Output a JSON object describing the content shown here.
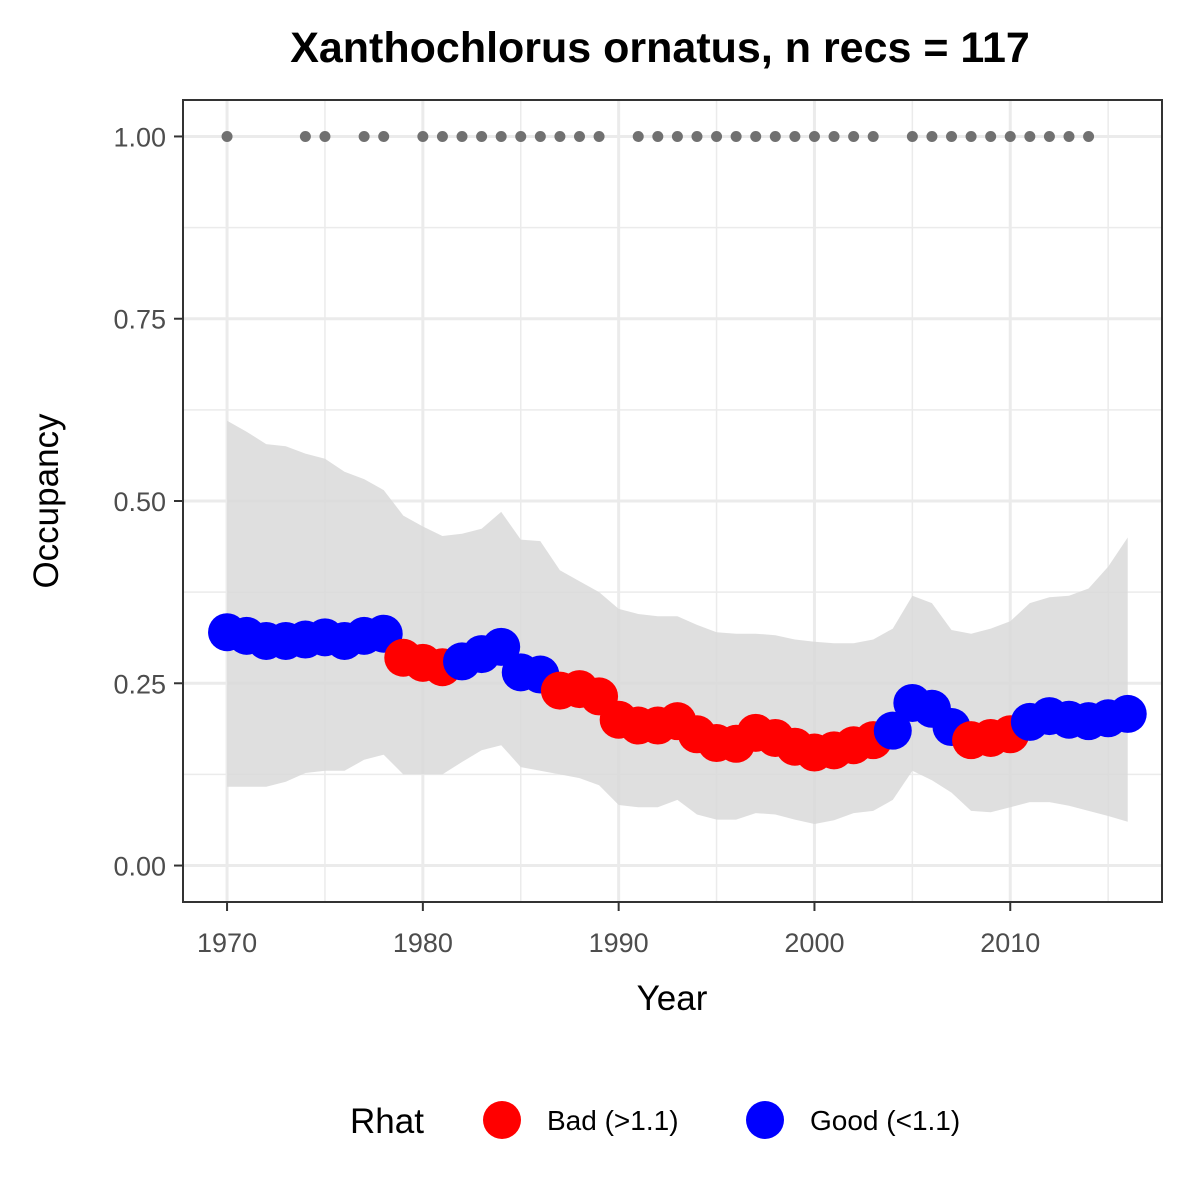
{
  "chart_data": {
    "type": "line",
    "title": "Xanthochlorus ornatus, n recs = 117",
    "xlabel": "Year",
    "ylabel": "Occupancy",
    "xlim": [
      1967.75,
      2017.75
    ],
    "ylim": [
      -0.05,
      1.05
    ],
    "x_ticks": [
      1970,
      1980,
      1990,
      2000,
      2010
    ],
    "x_tick_labels": [
      "1970",
      "1980",
      "1990",
      "2000",
      "2010"
    ],
    "y_ticks": [
      0,
      0.25,
      0.5,
      0.75,
      1
    ],
    "y_tick_labels": [
      "0.00",
      "0.25",
      "0.50",
      "0.75",
      "1.00"
    ],
    "grid": true,
    "legend_position": "bottom",
    "legend": {
      "title": "Rhat",
      "entries": [
        {
          "key": "bad",
          "label": "Bad (>1.1)",
          "color": "#ff0000"
        },
        {
          "key": "good",
          "label": "Good (<1.1)",
          "color": "#0000ff"
        }
      ]
    },
    "colors": {
      "bad": "#ff0000",
      "good": "#0000ff",
      "ribbon": "#d9d9d9",
      "record_dots": "#707070",
      "panel_border": "#333333",
      "grid": "#ebebeb"
    },
    "years": [
      1970,
      1971,
      1972,
      1973,
      1974,
      1975,
      1976,
      1977,
      1978,
      1979,
      1980,
      1981,
      1982,
      1983,
      1984,
      1985,
      1986,
      1987,
      1988,
      1989,
      1990,
      1991,
      1992,
      1993,
      1994,
      1995,
      1996,
      1997,
      1998,
      1999,
      2000,
      2001,
      2002,
      2003,
      2004,
      2005,
      2006,
      2007,
      2008,
      2009,
      2010,
      2011,
      2012,
      2013,
      2014,
      2015,
      2016
    ],
    "occupancy": [
      0.32,
      0.315,
      0.308,
      0.308,
      0.31,
      0.313,
      0.308,
      0.315,
      0.318,
      0.285,
      0.278,
      0.272,
      0.28,
      0.29,
      0.3,
      0.265,
      0.262,
      0.24,
      0.242,
      0.232,
      0.2,
      0.192,
      0.192,
      0.198,
      0.18,
      0.168,
      0.167,
      0.182,
      0.175,
      0.163,
      0.155,
      0.158,
      0.165,
      0.172,
      0.185,
      0.223,
      0.215,
      0.19,
      0.172,
      0.175,
      0.18,
      0.197,
      0.205,
      0.2,
      0.198,
      0.202,
      0.208
    ],
    "rhat_status": [
      "good",
      "good",
      "good",
      "good",
      "good",
      "good",
      "good",
      "good",
      "good",
      "bad",
      "bad",
      "bad",
      "good",
      "good",
      "good",
      "good",
      "good",
      "bad",
      "bad",
      "bad",
      "bad",
      "bad",
      "bad",
      "bad",
      "bad",
      "bad",
      "bad",
      "bad",
      "bad",
      "bad",
      "bad",
      "bad",
      "bad",
      "bad",
      "good",
      "good",
      "good",
      "good",
      "bad",
      "bad",
      "bad",
      "good",
      "good",
      "good",
      "good",
      "good",
      "good"
    ],
    "upper_ci": [
      0.61,
      0.595,
      0.578,
      0.575,
      0.565,
      0.558,
      0.54,
      0.53,
      0.515,
      0.48,
      0.465,
      0.452,
      0.455,
      0.462,
      0.485,
      0.447,
      0.445,
      0.405,
      0.39,
      0.375,
      0.352,
      0.345,
      0.342,
      0.342,
      0.33,
      0.32,
      0.318,
      0.318,
      0.316,
      0.31,
      0.307,
      0.305,
      0.305,
      0.31,
      0.325,
      0.37,
      0.36,
      0.323,
      0.318,
      0.325,
      0.335,
      0.36,
      0.368,
      0.37,
      0.38,
      0.41,
      0.45
    ],
    "lower_ci": [
      0.108,
      0.108,
      0.108,
      0.115,
      0.127,
      0.13,
      0.13,
      0.145,
      0.152,
      0.125,
      0.125,
      0.125,
      0.142,
      0.158,
      0.165,
      0.135,
      0.13,
      0.125,
      0.12,
      0.11,
      0.083,
      0.08,
      0.08,
      0.09,
      0.07,
      0.063,
      0.063,
      0.072,
      0.07,
      0.063,
      0.057,
      0.062,
      0.072,
      0.075,
      0.09,
      0.13,
      0.117,
      0.1,
      0.075,
      0.073,
      0.08,
      0.087,
      0.087,
      0.082,
      0.075,
      0.068,
      0.06
    ],
    "record_years": [
      1970,
      1974,
      1975,
      1977,
      1978,
      1980,
      1981,
      1982,
      1983,
      1984,
      1985,
      1986,
      1987,
      1988,
      1989,
      1991,
      1992,
      1993,
      1994,
      1995,
      1996,
      1997,
      1998,
      1999,
      2000,
      2001,
      2002,
      2003,
      2005,
      2006,
      2007,
      2008,
      2009,
      2010,
      2011,
      2012,
      2013,
      2014
    ],
    "record_value": 1.0
  }
}
